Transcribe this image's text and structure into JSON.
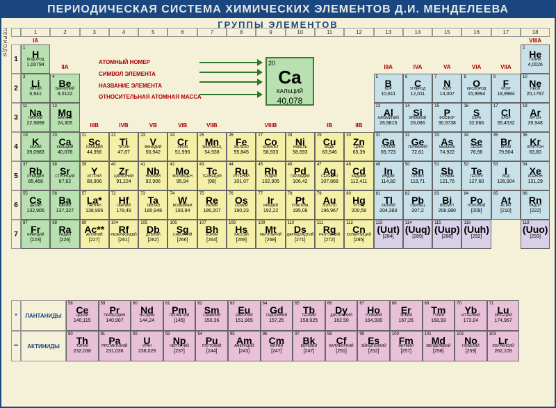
{
  "title": "ПЕРИОДИЧЕСКАЯ СИСТЕМА ХИМИЧЕСКИХ ЭЛЕМЕНТОВ Д.И. МЕНДЕЛЕЕВА",
  "subtitle": "ГРУППЫ ЭЛЕМЕНТОВ",
  "periods_label": "ПЕРИОДЫ",
  "legend": {
    "atomic_number": "АТОМНЫЙ НОМЕР",
    "symbol": "СИМВОЛ ЭЛЕМЕНТА",
    "name": "НАЗВАНИЕ ЭЛЕМЕНТА",
    "mass": "ОТНОСИТЕЛЬНАЯ АТОМНАЯ МАССА",
    "example": {
      "num": "20",
      "sym": "Ca",
      "name": "КАЛЬЦИЙ",
      "mass": "40,078"
    }
  },
  "lanthanides_label": "ЛАНТАНИДЫ",
  "actinides_label": "АКТИНИДЫ",
  "colors": {
    "green": "#b8e0b0",
    "yellow": "#f5f0a8",
    "blue": "#c8e0e8",
    "pink": "#e8c0d8",
    "lavender": "#d8d0e8",
    "orange": "#f0d8b0"
  },
  "group_labels_top": [
    "IA",
    "IIA",
    "IIIB",
    "IVB",
    "VB",
    "VIB",
    "VIIB",
    "VIIIB",
    "VIIIB",
    "VIIIB",
    "IB",
    "IIB",
    "IIIA",
    "IVA",
    "VA",
    "VIA",
    "VIIA",
    "VIIIA"
  ],
  "elements": [
    {
      "p": 1,
      "g": 1,
      "n": 1,
      "s": "H",
      "na": "ВОДОРОД",
      "m": "1,00794",
      "c": "green"
    },
    {
      "p": 1,
      "g": 18,
      "n": 2,
      "s": "He",
      "na": "ГЕЛИЙ",
      "m": "4,0026",
      "c": "blue"
    },
    {
      "p": 2,
      "g": 1,
      "n": 3,
      "s": "Li",
      "na": "ЛИТИЙ",
      "m": "6,941",
      "c": "green"
    },
    {
      "p": 2,
      "g": 2,
      "n": 4,
      "s": "Be",
      "na": "БЕРИЛЛИЙ",
      "m": "9,0122",
      "c": "green"
    },
    {
      "p": 2,
      "g": 13,
      "n": 5,
      "s": "B",
      "na": "БОР",
      "m": "10,811",
      "c": "blue"
    },
    {
      "p": 2,
      "g": 14,
      "n": 6,
      "s": "C",
      "na": "УГЛЕРОД",
      "m": "12,011",
      "c": "blue"
    },
    {
      "p": 2,
      "g": 15,
      "n": 7,
      "s": "N",
      "na": "АЗОТ",
      "m": "14,007",
      "c": "blue"
    },
    {
      "p": 2,
      "g": 16,
      "n": 8,
      "s": "O",
      "na": "КИСЛОРОД",
      "m": "15,9994",
      "c": "blue"
    },
    {
      "p": 2,
      "g": 17,
      "n": 9,
      "s": "F",
      "na": "ФТОР",
      "m": "18,9984",
      "c": "blue"
    },
    {
      "p": 2,
      "g": 18,
      "n": 10,
      "s": "Ne",
      "na": "НЕОН",
      "m": "20,1797",
      "c": "blue"
    },
    {
      "p": 3,
      "g": 1,
      "n": 11,
      "s": "Na",
      "na": "НАТРИЙ",
      "m": "22,9898",
      "c": "green"
    },
    {
      "p": 3,
      "g": 2,
      "n": 12,
      "s": "Mg",
      "na": "МАГНИЙ",
      "m": "24,305",
      "c": "green"
    },
    {
      "p": 3,
      "g": 13,
      "n": 13,
      "s": "Al",
      "na": "АЛЮМИНИЙ",
      "m": "26,9815",
      "c": "blue"
    },
    {
      "p": 3,
      "g": 14,
      "n": 14,
      "s": "Si",
      "na": "КРЕМНИЙ",
      "m": "28,086",
      "c": "blue"
    },
    {
      "p": 3,
      "g": 15,
      "n": 15,
      "s": "P",
      "na": "ФОСФОР",
      "m": "30,9738",
      "c": "blue"
    },
    {
      "p": 3,
      "g": 16,
      "n": 16,
      "s": "S",
      "na": "СЕРА",
      "m": "32,066",
      "c": "blue"
    },
    {
      "p": 3,
      "g": 17,
      "n": 17,
      "s": "Cl",
      "na": "ХЛОР",
      "m": "35,4532",
      "c": "blue"
    },
    {
      "p": 3,
      "g": 18,
      "n": 18,
      "s": "Ar",
      "na": "АРГОН",
      "m": "39,948",
      "c": "blue"
    },
    {
      "p": 4,
      "g": 1,
      "n": 19,
      "s": "K",
      "na": "КАЛИЙ",
      "m": "39,0983",
      "c": "green"
    },
    {
      "p": 4,
      "g": 2,
      "n": 20,
      "s": "Ca",
      "na": "КАЛЬЦИЙ",
      "m": "40,078",
      "c": "green"
    },
    {
      "p": 4,
      "g": 3,
      "n": 21,
      "s": "Sc",
      "na": "СКАНДИЙ",
      "m": "44,956",
      "c": "yellow"
    },
    {
      "p": 4,
      "g": 4,
      "n": 22,
      "s": "Ti",
      "na": "ТИТАН",
      "m": "47,87",
      "c": "yellow"
    },
    {
      "p": 4,
      "g": 5,
      "n": 23,
      "s": "V",
      "na": "ВАНАДИЙ",
      "m": "50,942",
      "c": "yellow"
    },
    {
      "p": 4,
      "g": 6,
      "n": 24,
      "s": "Cr",
      "na": "ХРОМ",
      "m": "51,996",
      "c": "yellow"
    },
    {
      "p": 4,
      "g": 7,
      "n": 25,
      "s": "Mn",
      "na": "МАРГАНЕЦ",
      "m": "54,938",
      "c": "yellow"
    },
    {
      "p": 4,
      "g": 8,
      "n": 26,
      "s": "Fe",
      "na": "ЖЕЛЕЗО",
      "m": "55,845",
      "c": "yellow"
    },
    {
      "p": 4,
      "g": 9,
      "n": 27,
      "s": "Co",
      "na": "КОБАЛЬТ",
      "m": "58,933",
      "c": "yellow"
    },
    {
      "p": 4,
      "g": 10,
      "n": 28,
      "s": "Ni",
      "na": "НИКЕЛЬ",
      "m": "58,693",
      "c": "yellow"
    },
    {
      "p": 4,
      "g": 11,
      "n": 29,
      "s": "Cu",
      "na": "МЕДЬ",
      "m": "63,546",
      "c": "yellow"
    },
    {
      "p": 4,
      "g": 12,
      "n": 30,
      "s": "Zn",
      "na": "ЦИНК",
      "m": "65,39",
      "c": "yellow"
    },
    {
      "p": 4,
      "g": 13,
      "n": 31,
      "s": "Ga",
      "na": "ГАЛЛИЙ",
      "m": "69,723",
      "c": "blue"
    },
    {
      "p": 4,
      "g": 14,
      "n": 32,
      "s": "Ge",
      "na": "ГЕРМАНИЙ",
      "m": "72,61",
      "c": "blue"
    },
    {
      "p": 4,
      "g": 15,
      "n": 33,
      "s": "As",
      "na": "МЫШЬЯК",
      "m": "74,922",
      "c": "blue"
    },
    {
      "p": 4,
      "g": 16,
      "n": 34,
      "s": "Se",
      "na": "СЕЛЕН",
      "m": "78,96",
      "c": "blue"
    },
    {
      "p": 4,
      "g": 17,
      "n": 35,
      "s": "Br",
      "na": "БРОМ",
      "m": "79,904",
      "c": "blue"
    },
    {
      "p": 4,
      "g": 18,
      "n": 36,
      "s": "Kr",
      "na": "КРИПТОН",
      "m": "83,80",
      "c": "blue"
    },
    {
      "p": 5,
      "g": 1,
      "n": 37,
      "s": "Rb",
      "na": "РУБИДИЙ",
      "m": "85,468",
      "c": "green"
    },
    {
      "p": 5,
      "g": 2,
      "n": 38,
      "s": "Sr",
      "na": "СТРОНЦИЙ",
      "m": "87,62",
      "c": "green"
    },
    {
      "p": 5,
      "g": 3,
      "n": 39,
      "s": "Y",
      "na": "ИТТРИЙ",
      "m": "88,906",
      "c": "yellow"
    },
    {
      "p": 5,
      "g": 4,
      "n": 40,
      "s": "Zr",
      "na": "ЦИРКОНИЙ",
      "m": "91,224",
      "c": "yellow"
    },
    {
      "p": 5,
      "g": 5,
      "n": 41,
      "s": "Nb",
      "na": "НИОБИЙ",
      "m": "92,906",
      "c": "yellow"
    },
    {
      "p": 5,
      "g": 6,
      "n": 42,
      "s": "Mo",
      "na": "МОЛИБДЕН",
      "m": "95,94",
      "c": "yellow"
    },
    {
      "p": 5,
      "g": 7,
      "n": 43,
      "s": "Tc",
      "na": "ТЕХНЕЦИЙ",
      "m": "[98]",
      "c": "yellow"
    },
    {
      "p": 5,
      "g": 8,
      "n": 44,
      "s": "Ru",
      "na": "РУТЕНИЙ",
      "m": "101,07",
      "c": "yellow"
    },
    {
      "p": 5,
      "g": 9,
      "n": 45,
      "s": "Rh",
      "na": "РОДИЙ",
      "m": "102,905",
      "c": "yellow"
    },
    {
      "p": 5,
      "g": 10,
      "n": 46,
      "s": "Pd",
      "na": "ПАЛЛАДИЙ",
      "m": "106,42",
      "c": "yellow"
    },
    {
      "p": 5,
      "g": 11,
      "n": 47,
      "s": "Ag",
      "na": "СЕРЕБРО",
      "m": "107,868",
      "c": "yellow"
    },
    {
      "p": 5,
      "g": 12,
      "n": 48,
      "s": "Cd",
      "na": "КАДМИЙ",
      "m": "112,411",
      "c": "yellow"
    },
    {
      "p": 5,
      "g": 13,
      "n": 49,
      "s": "In",
      "na": "ИНДИЙ",
      "m": "114,82",
      "c": "blue"
    },
    {
      "p": 5,
      "g": 14,
      "n": 50,
      "s": "Sn",
      "na": "ОЛОВО",
      "m": "118,71",
      "c": "blue"
    },
    {
      "p": 5,
      "g": 15,
      "n": 51,
      "s": "Sb",
      "na": "СУРЬМА",
      "m": "121,76",
      "c": "blue"
    },
    {
      "p": 5,
      "g": 16,
      "n": 52,
      "s": "Te",
      "na": "ТЕЛЛУР",
      "m": "127,60",
      "c": "blue"
    },
    {
      "p": 5,
      "g": 17,
      "n": 53,
      "s": "I",
      "na": "ЙОД",
      "m": "126,904",
      "c": "blue"
    },
    {
      "p": 5,
      "g": 18,
      "n": 54,
      "s": "Xe",
      "na": "КСЕНОН",
      "m": "131,29",
      "c": "blue"
    },
    {
      "p": 6,
      "g": 1,
      "n": 55,
      "s": "Cs",
      "na": "ЦЕЗИЙ",
      "m": "132,905",
      "c": "green"
    },
    {
      "p": 6,
      "g": 2,
      "n": 56,
      "s": "Ba",
      "na": "БАРИЙ",
      "m": "137,327",
      "c": "green"
    },
    {
      "p": 6,
      "g": 3,
      "n": 57,
      "s": "La*",
      "na": "ЛАНТАН",
      "m": "138,906",
      "c": "yellow"
    },
    {
      "p": 6,
      "g": 4,
      "n": 72,
      "s": "Hf",
      "na": "ГАФНИЙ",
      "m": "178,49",
      "c": "yellow"
    },
    {
      "p": 6,
      "g": 5,
      "n": 73,
      "s": "Ta",
      "na": "ТАНТАЛ",
      "m": "180,948",
      "c": "yellow"
    },
    {
      "p": 6,
      "g": 6,
      "n": 74,
      "s": "W",
      "na": "ВОЛЬФРАМ",
      "m": "183,84",
      "c": "yellow"
    },
    {
      "p": 6,
      "g": 7,
      "n": 75,
      "s": "Re",
      "na": "РЕНИЙ",
      "m": "186,207",
      "c": "yellow"
    },
    {
      "p": 6,
      "g": 8,
      "n": 76,
      "s": "Os",
      "na": "ОСМИЙ",
      "m": "190,23",
      "c": "yellow"
    },
    {
      "p": 6,
      "g": 9,
      "n": 77,
      "s": "Ir",
      "na": "ИРИДИЙ",
      "m": "192,22",
      "c": "yellow"
    },
    {
      "p": 6,
      "g": 10,
      "n": 78,
      "s": "Pt",
      "na": "ПЛАТИНА",
      "m": "195,08",
      "c": "yellow"
    },
    {
      "p": 6,
      "g": 11,
      "n": 79,
      "s": "Au",
      "na": "ЗОЛОТО",
      "m": "196,967",
      "c": "yellow"
    },
    {
      "p": 6,
      "g": 12,
      "n": 80,
      "s": "Hg",
      "na": "РТУТЬ",
      "m": "200,59",
      "c": "yellow"
    },
    {
      "p": 6,
      "g": 13,
      "n": 81,
      "s": "Tl",
      "na": "ТАЛЛИЙ",
      "m": "204,383",
      "c": "blue"
    },
    {
      "p": 6,
      "g": 14,
      "n": 82,
      "s": "Pb",
      "na": "СВИНЕЦ",
      "m": "207,2",
      "c": "blue"
    },
    {
      "p": 6,
      "g": 15,
      "n": 83,
      "s": "Bi",
      "na": "ВИСМУТ",
      "m": "208,980",
      "c": "blue"
    },
    {
      "p": 6,
      "g": 16,
      "n": 84,
      "s": "Po",
      "na": "ПОЛОНИЙ",
      "m": "[209]",
      "c": "blue"
    },
    {
      "p": 6,
      "g": 17,
      "n": 85,
      "s": "At",
      "na": "АСТАТ",
      "m": "[210]",
      "c": "blue"
    },
    {
      "p": 6,
      "g": 18,
      "n": 86,
      "s": "Rn",
      "na": "РАДОН",
      "m": "[222]",
      "c": "blue"
    },
    {
      "p": 7,
      "g": 1,
      "n": 87,
      "s": "Fr",
      "na": "ФРАНЦИЙ",
      "m": "[223]",
      "c": "green"
    },
    {
      "p": 7,
      "g": 2,
      "n": 88,
      "s": "Ra",
      "na": "РАДИЙ",
      "m": "[226]",
      "c": "green"
    },
    {
      "p": 7,
      "g": 3,
      "n": 89,
      "s": "Ac**",
      "na": "АКТИНИЙ",
      "m": "[227]",
      "c": "yellow"
    },
    {
      "p": 7,
      "g": 4,
      "n": 104,
      "s": "Rf",
      "na": "РЕЗЕРФОРДИЙ",
      "m": "[261]",
      "c": "yellow"
    },
    {
      "p": 7,
      "g": 5,
      "n": 105,
      "s": "Db",
      "na": "ДУБНИЙ",
      "m": "[262]",
      "c": "yellow"
    },
    {
      "p": 7,
      "g": 6,
      "n": 106,
      "s": "Sg",
      "na": "СИБОРГИЙ",
      "m": "[266]",
      "c": "yellow"
    },
    {
      "p": 7,
      "g": 7,
      "n": 107,
      "s": "Bh",
      "na": "БОРИЙ",
      "m": "[264]",
      "c": "yellow"
    },
    {
      "p": 7,
      "g": 8,
      "n": 108,
      "s": "Hs",
      "na": "ХАССИЙ",
      "m": "[269]",
      "c": "yellow"
    },
    {
      "p": 7,
      "g": 9,
      "n": 109,
      "s": "Mt",
      "na": "МЕЙТНЕРИЙ",
      "m": "[268]",
      "c": "yellow"
    },
    {
      "p": 7,
      "g": 10,
      "n": 110,
      "s": "Ds",
      "na": "ДАРМШТАДТИЙ",
      "m": "[271]",
      "c": "yellow"
    },
    {
      "p": 7,
      "g": 11,
      "n": 111,
      "s": "Rg",
      "na": "РЕНТГЕНИЙ",
      "m": "[272]",
      "c": "yellow"
    },
    {
      "p": 7,
      "g": 12,
      "n": 112,
      "s": "Cn",
      "na": "КОПЕРНИЦИЙ",
      "m": "[285]",
      "c": "yellow"
    },
    {
      "p": 7,
      "g": 13,
      "n": 113,
      "s": "(Uut)",
      "na": "",
      "m": "[284]",
      "c": "lavender"
    },
    {
      "p": 7,
      "g": 14,
      "n": 114,
      "s": "(Uuq)",
      "na": "",
      "m": "[289]",
      "c": "lavender"
    },
    {
      "p": 7,
      "g": 15,
      "n": 115,
      "s": "(Uup)",
      "na": "",
      "m": "[288]",
      "c": "lavender"
    },
    {
      "p": 7,
      "g": 16,
      "n": 116,
      "s": "(Uuh)",
      "na": "",
      "m": "[292]",
      "c": "lavender"
    },
    {
      "p": 7,
      "g": 18,
      "n": 118,
      "s": "(Uuo)",
      "na": "",
      "m": "[293]",
      "c": "lavender"
    }
  ],
  "lanthanides": [
    {
      "n": 58,
      "s": "Ce",
      "na": "ЦЕРИЙ",
      "m": "140,115"
    },
    {
      "n": 59,
      "s": "Pr",
      "na": "ПРАЗЕОДИМ",
      "m": "140,907"
    },
    {
      "n": 60,
      "s": "Nd",
      "na": "НЕОДИМ",
      "m": "144,24"
    },
    {
      "n": 61,
      "s": "Pm",
      "na": "ПРОМЕТИЙ",
      "m": "[145]"
    },
    {
      "n": 62,
      "s": "Sm",
      "na": "САМАРИЙ",
      "m": "150,36"
    },
    {
      "n": 63,
      "s": "Eu",
      "na": "ЕВРОПИЙ",
      "m": "151,965"
    },
    {
      "n": 64,
      "s": "Gd",
      "na": "ГАДОЛИНИЙ",
      "m": "157,25"
    },
    {
      "n": 65,
      "s": "Tb",
      "na": "ТЕРБИЙ",
      "m": "158,925"
    },
    {
      "n": 66,
      "s": "Dy",
      "na": "ДИСПРОЗИЙ",
      "m": "162,50"
    },
    {
      "n": 67,
      "s": "Ho",
      "na": "ГОЛЬМИЙ",
      "m": "164,930"
    },
    {
      "n": 68,
      "s": "Er",
      "na": "ЭРБИЙ",
      "m": "167,26"
    },
    {
      "n": 69,
      "s": "Tm",
      "na": "ТУЛИЙ",
      "m": "168,93"
    },
    {
      "n": 70,
      "s": "Yb",
      "na": "ИТТЕРБИЙ",
      "m": "173,04"
    },
    {
      "n": 71,
      "s": "Lu",
      "na": "ЛЮТЕЦИЙ",
      "m": "174,967"
    }
  ],
  "actinides": [
    {
      "n": 90,
      "s": "Th",
      "na": "ТОРИЙ",
      "m": "232,038"
    },
    {
      "n": 91,
      "s": "Pa",
      "na": "ПРОТАКТИНИЙ",
      "m": "231,036"
    },
    {
      "n": 92,
      "s": "U",
      "na": "УРАН",
      "m": "238,029"
    },
    {
      "n": 93,
      "s": "Np",
      "na": "НЕПТУНИЙ",
      "m": "[237]"
    },
    {
      "n": 94,
      "s": "Pu",
      "na": "ПЛУТОНИЙ",
      "m": "[244]"
    },
    {
      "n": 95,
      "s": "Am",
      "na": "АМЕРИЦИЙ",
      "m": "[243]"
    },
    {
      "n": 96,
      "s": "Cm",
      "na": "КЮРИЙ",
      "m": "[247]"
    },
    {
      "n": 97,
      "s": "Bk",
      "na": "БЕРКЛИЙ",
      "m": "[247]"
    },
    {
      "n": 98,
      "s": "Cf",
      "na": "КАЛИФОРНИЙ",
      "m": "[251]"
    },
    {
      "n": 99,
      "s": "Es",
      "na": "ЭЙНШТЕЙНИЙ",
      "m": "[252]"
    },
    {
      "n": 100,
      "s": "Fm",
      "na": "ФЕРМИЙ",
      "m": "[257]"
    },
    {
      "n": 101,
      "s": "Md",
      "na": "МЕНДЕЛЕВИЙ",
      "m": "[258]"
    },
    {
      "n": 102,
      "s": "No",
      "na": "НОБЕЛИЙ",
      "m": "[259]"
    },
    {
      "n": 103,
      "s": "Lr",
      "na": "ЛОУРЕНСИЙ",
      "m": "262,105"
    }
  ]
}
